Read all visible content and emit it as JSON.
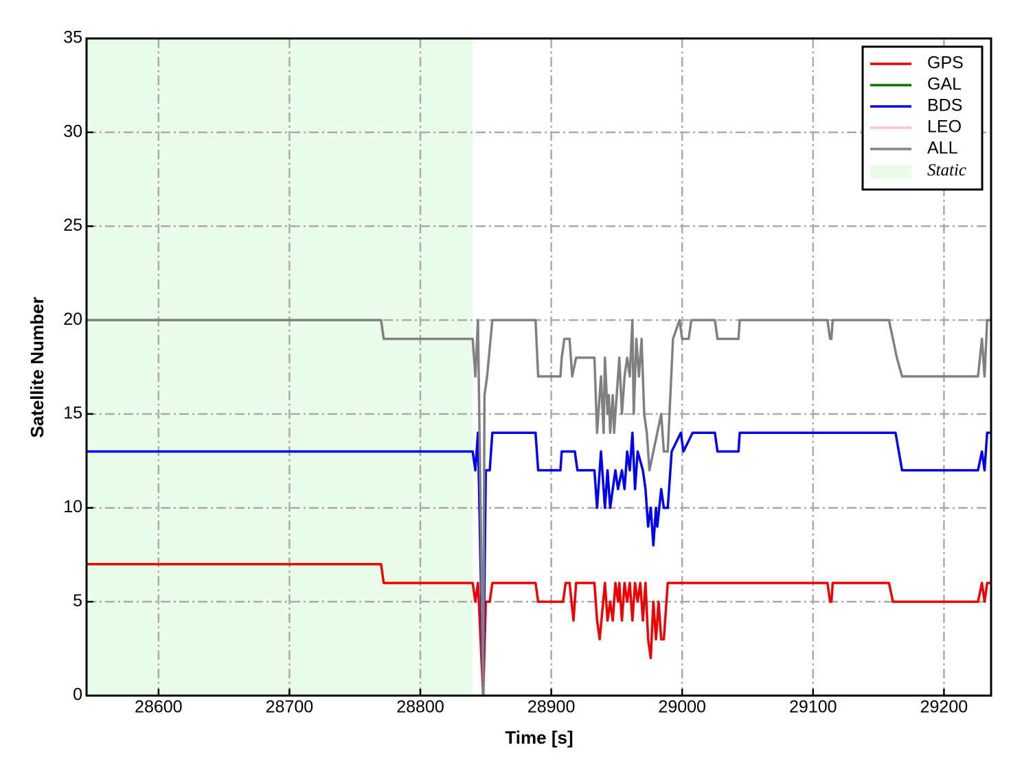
{
  "chart_data": {
    "type": "line",
    "xlabel": "Time [s]",
    "ylabel": "Satellite Number",
    "xlim": [
      28545,
      29236
    ],
    "xticks": [
      28600,
      28700,
      28800,
      28900,
      29000,
      29100,
      29200
    ],
    "ylim": [
      0,
      35
    ],
    "yticks": [
      0,
      5,
      10,
      15,
      20,
      25,
      30,
      35
    ],
    "grid": true,
    "legend": "upper right",
    "spans": [
      {
        "label": "Static",
        "xmin": 28545,
        "xmax": 28840,
        "color": "#e8fce8"
      }
    ],
    "series": [
      {
        "name": "GPS",
        "color": "#ee0000",
        "x": [
          28545,
          28770,
          28772,
          28840,
          28842,
          28844,
          28848,
          28850,
          28853,
          28855,
          28888,
          28890,
          28909,
          28911,
          28914,
          28917,
          28919,
          28933,
          28935,
          28937,
          28941,
          28943,
          28945,
          28947,
          28949,
          28951,
          28952,
          28954,
          28956,
          28958,
          28960,
          28962,
          28964,
          28966,
          28968,
          28970,
          28972,
          28974,
          28976,
          28978,
          28980,
          28982,
          28984,
          28986,
          28989,
          28992,
          29111,
          29113,
          29114,
          29115,
          29158,
          29161,
          29226,
          29229,
          29231,
          29233,
          29236
        ],
        "values": [
          7,
          7,
          6,
          6,
          5,
          6,
          0,
          5,
          5,
          6,
          6,
          5,
          5,
          6,
          6,
          4,
          6,
          6,
          4,
          3,
          6,
          4,
          5,
          4,
          6,
          5,
          6,
          4,
          6,
          5,
          6,
          4,
          6,
          5,
          6,
          4,
          6,
          3,
          2,
          5,
          3,
          5,
          3,
          3,
          6,
          6,
          6,
          5,
          5,
          6,
          6,
          5,
          5,
          6,
          5,
          6,
          6
        ]
      },
      {
        "name": "GAL",
        "color": "#007700",
        "x": [],
        "values": []
      },
      {
        "name": "BDS",
        "color": "#0000ee",
        "x": [
          28545,
          28840,
          28842,
          28844,
          28848,
          28850,
          28853,
          28855,
          28888,
          28890,
          28907,
          28908,
          28918,
          28920,
          28933,
          28935,
          28938,
          28941,
          28943,
          28945,
          28949,
          28951,
          28954,
          28956,
          28958,
          28960,
          28962,
          28964,
          28966,
          28970,
          28972,
          28974,
          28976,
          28978,
          28980,
          28981,
          28984,
          28986,
          28989,
          28992,
          28999,
          29001,
          29008,
          29025,
          29027,
          29043,
          29044,
          29163,
          29168,
          29226,
          29229,
          29231,
          29233,
          29236
        ],
        "values": [
          13,
          13,
          12,
          14,
          0,
          12,
          12,
          14,
          14,
          12,
          12,
          13,
          13,
          12,
          12,
          10,
          13,
          10,
          12,
          10,
          12,
          11,
          12,
          11,
          13,
          12,
          14,
          11,
          13,
          12,
          11,
          9,
          10,
          8,
          10,
          9,
          11,
          10,
          10,
          13,
          14,
          13,
          14,
          14,
          13,
          13,
          14,
          14,
          12,
          12,
          13,
          12,
          14,
          14
        ]
      },
      {
        "name": "LEO",
        "color": "#ffc0cb",
        "x": [],
        "values": []
      },
      {
        "name": "ALL",
        "color": "#808080",
        "x": [
          28545,
          28770,
          28772,
          28840,
          28842,
          28844,
          28848,
          28849,
          28851,
          28855,
          28888,
          28890,
          28907,
          28908,
          28910,
          28914,
          28916,
          28919,
          28933,
          28934,
          28935,
          28938,
          28940,
          28941,
          28943,
          28944,
          28945,
          28947,
          28948,
          28951,
          28952,
          28954,
          28956,
          28958,
          28960,
          28962,
          28963,
          28965,
          28967,
          28969,
          28971,
          28973,
          28975,
          28978,
          28984,
          28986,
          28989,
          28991,
          28993,
          28998,
          29000,
          29005,
          29007,
          29025,
          29027,
          29043,
          29044,
          29111,
          29113,
          29114,
          29115,
          29158,
          29161,
          29164,
          29168,
          29226,
          29229,
          29231,
          29233,
          29236
        ],
        "values": [
          20,
          20,
          19,
          19,
          17,
          20,
          0,
          16,
          17,
          20,
          20,
          17,
          17,
          18,
          19,
          19,
          17,
          18,
          18,
          16,
          14,
          17,
          14,
          18,
          15,
          16,
          14,
          16,
          14,
          17,
          18,
          15,
          17,
          18,
          17,
          20,
          15,
          19,
          17,
          19,
          15,
          14,
          12,
          13,
          15,
          13,
          13,
          16,
          19,
          20,
          19,
          19,
          20,
          20,
          19,
          19,
          20,
          20,
          19,
          19,
          20,
          20,
          19,
          18,
          17,
          17,
          19,
          17,
          20,
          20
        ]
      }
    ]
  }
}
